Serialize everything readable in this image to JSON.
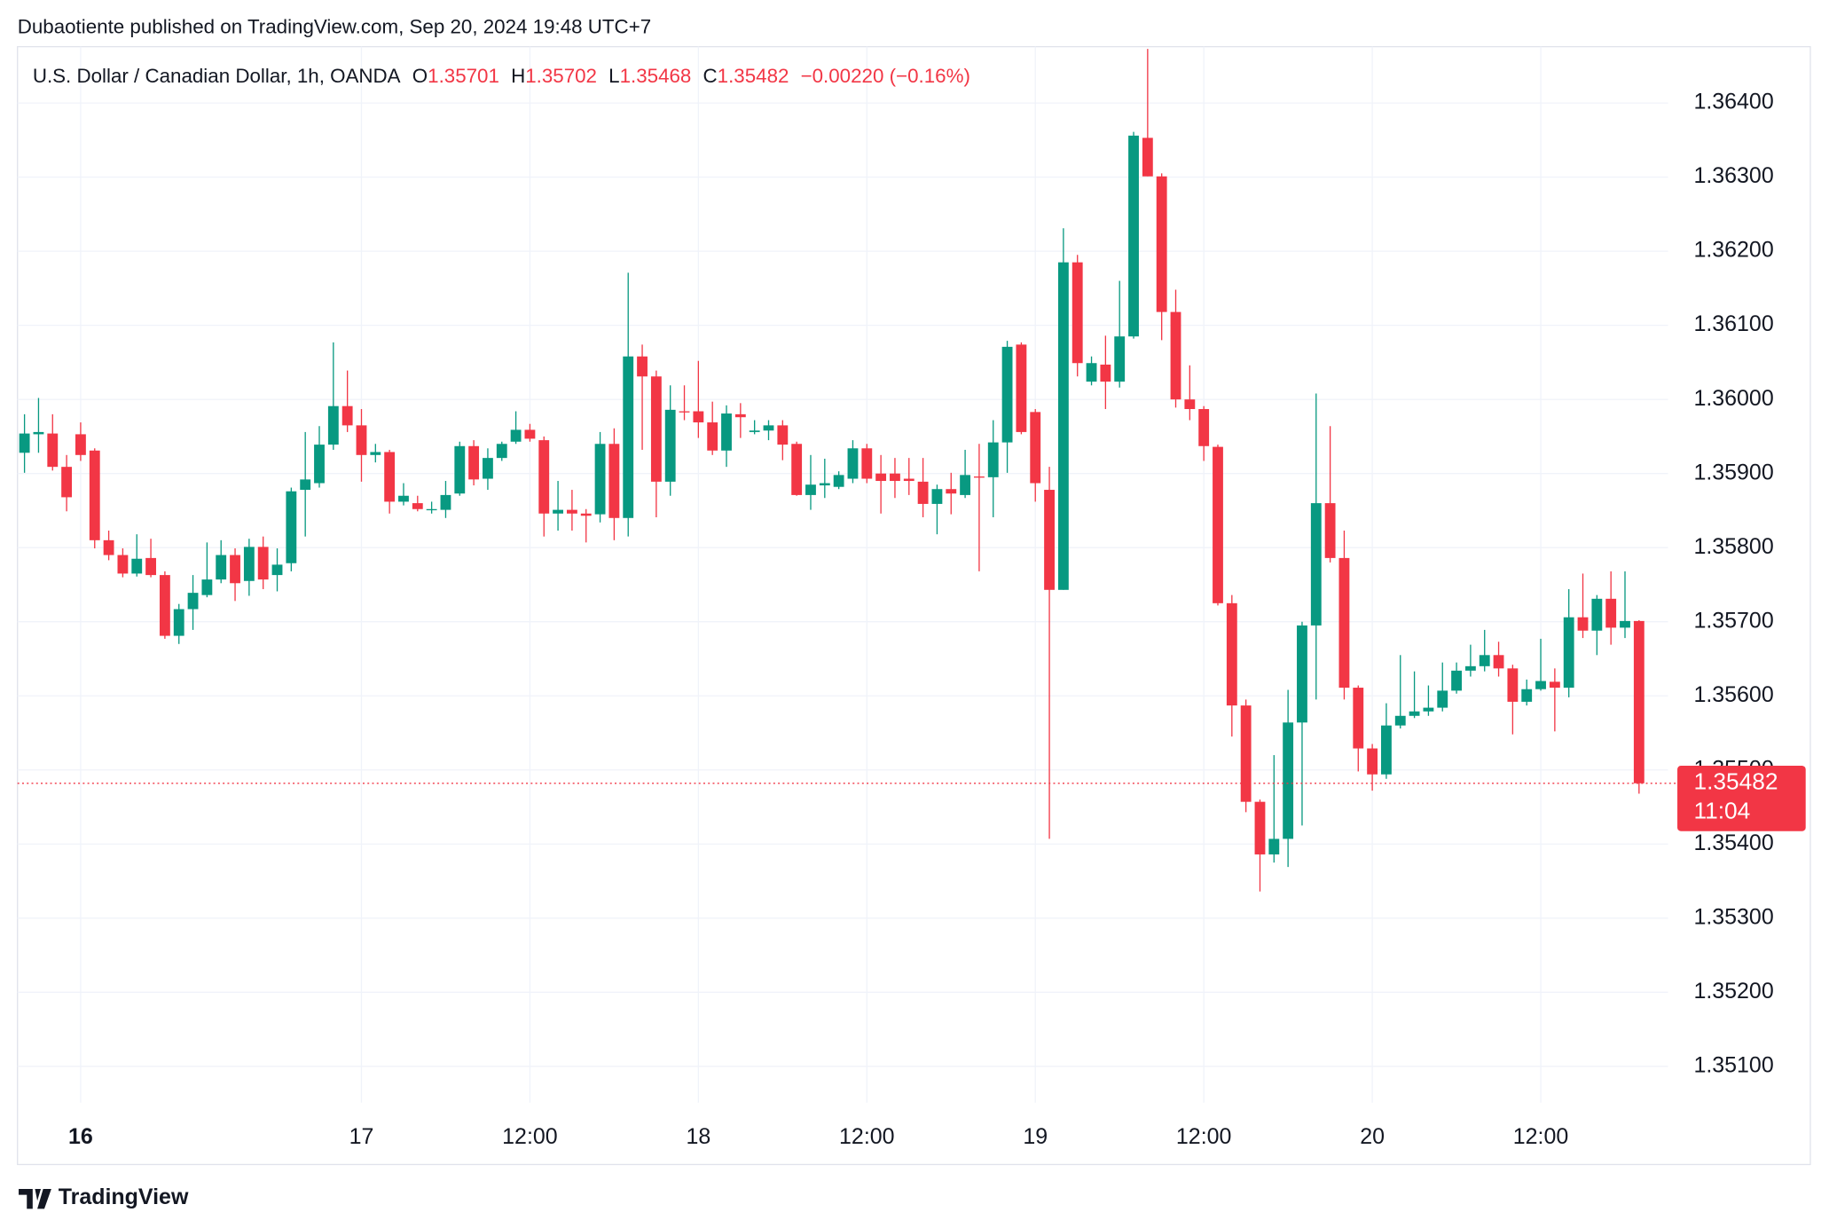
{
  "header": {
    "byline": "Dubaotiente published on TradingView.com, Sep 20, 2024 19:48 UTC+7",
    "symbol": "U.S. Dollar / Canadian Dollar, 1h, OANDA",
    "ohlc": [
      {
        "key": "O",
        "value": "1.35701"
      },
      {
        "key": "H",
        "value": "1.35702"
      },
      {
        "key": "L",
        "value": "1.35468"
      },
      {
        "key": "C",
        "value": "1.35482"
      }
    ],
    "change": "−0.00220 (−0.16%)"
  },
  "chart_data": {
    "type": "candlestick",
    "categories": [
      null,
      null,
      null,
      null,
      "16",
      null,
      null,
      null,
      null,
      null,
      null,
      null,
      null,
      null,
      null,
      null,
      null,
      null,
      null,
      null,
      null,
      null,
      null,
      null,
      "17",
      null,
      null,
      null,
      null,
      null,
      null,
      null,
      null,
      null,
      null,
      null,
      "12:00",
      null,
      null,
      null,
      null,
      null,
      null,
      null,
      null,
      null,
      null,
      null,
      "18",
      null,
      null,
      null,
      null,
      null,
      null,
      null,
      null,
      null,
      null,
      null,
      "12:00",
      null,
      null,
      null,
      null,
      null,
      null,
      null,
      null,
      null,
      null,
      null,
      "19",
      null,
      null,
      null,
      null,
      null,
      null,
      null,
      null,
      null,
      null,
      null,
      "12:00",
      null,
      null,
      null,
      null,
      null,
      null,
      null,
      null,
      null,
      null,
      null,
      "20",
      null,
      null,
      null,
      null,
      null,
      null,
      null,
      null,
      null,
      null,
      null,
      "12:00",
      null,
      null,
      null,
      null,
      null,
      null,
      null
    ],
    "open": [
      1.35928,
      1.35953,
      1.35954,
      1.35909,
      1.35953,
      1.35931,
      1.3581,
      1.3579,
      1.35765,
      1.35786,
      1.35763,
      1.35681,
      1.35717,
      1.35736,
      1.35757,
      1.3579,
      1.35755,
      1.35801,
      1.35763,
      1.35779,
      1.35878,
      1.35887,
      1.35939,
      1.35991,
      1.35965,
      1.35925,
      1.35929,
      1.35862,
      1.3586,
      1.35851,
      1.35851,
      1.35873,
      1.35937,
      1.35893,
      1.35921,
      1.35943,
      1.35959,
      1.35945,
      1.35846,
      1.35851,
      1.35846,
      1.35845,
      1.3594,
      1.3584,
      1.36058,
      1.36031,
      1.35889,
      1.35984,
      1.35984,
      1.35969,
      1.35931,
      1.3598,
      1.35956,
      1.35958,
      1.35965,
      1.3594,
      1.35871,
      1.35884,
      1.35882,
      1.35893,
      1.35934,
      1.359,
      1.359,
      1.35893,
      1.35889,
      1.35859,
      1.35879,
      1.35871,
      1.35896,
      1.35895,
      1.35942,
      1.36074,
      1.35983,
      1.35878,
      1.35743,
      1.36185,
      1.36024,
      1.36047,
      1.36024,
      1.36085,
      1.36353,
      1.36301,
      1.36118,
      1.36,
      1.35987,
      1.35936,
      1.35725,
      1.35587,
      1.35457,
      1.35386,
      1.35407,
      1.35564,
      1.35695,
      1.3586,
      1.35786,
      1.35611,
      1.35529,
      1.35494,
      1.3556,
      1.35573,
      1.35579,
      1.35584,
      1.35607,
      1.35634,
      1.3564,
      1.35655,
      1.35637,
      1.35592,
      1.35609,
      1.35619,
      1.35611,
      1.35706,
      1.35688,
      1.35731,
      1.35692,
      1.35701
    ],
    "high": [
      1.3598,
      1.36002,
      1.3598,
      1.35925,
      1.35969,
      1.35934,
      1.35823,
      1.35799,
      1.35818,
      1.35812,
      1.35768,
      1.35724,
      1.35763,
      1.35807,
      1.3581,
      1.35799,
      1.35812,
      1.35815,
      1.35799,
      1.35881,
      1.35956,
      1.35964,
      1.36077,
      1.36039,
      1.35987,
      1.3594,
      1.35932,
      1.35887,
      1.3587,
      1.35862,
      1.3589,
      1.35943,
      1.35945,
      1.35934,
      1.35943,
      1.35984,
      1.35967,
      1.3595,
      1.3589,
      1.35878,
      1.35852,
      1.35956,
      1.35961,
      1.36171,
      1.36074,
      1.36039,
      1.36019,
      1.36019,
      1.36052,
      1.35997,
      1.35992,
      1.35995,
      1.35972,
      1.35972,
      1.35972,
      1.35943,
      1.35925,
      1.3592,
      1.35903,
      1.35945,
      1.3594,
      1.35925,
      1.35921,
      1.35921,
      1.35921,
      1.35885,
      1.35901,
      1.35932,
      1.3594,
      1.35972,
      1.36079,
      1.36077,
      1.35987,
      1.35909,
      1.36231,
      1.36195,
      1.36058,
      1.36086,
      1.3616,
      1.36361,
      1.36473,
      1.36305,
      1.36148,
      1.36046,
      1.35991,
      1.35939,
      1.35736,
      1.35595,
      1.3546,
      1.3552,
      1.35608,
      1.357,
      1.36008,
      1.35964,
      1.35823,
      1.35614,
      1.35535,
      1.3559,
      1.35655,
      1.35633,
      1.35614,
      1.35645,
      1.35645,
      1.35669,
      1.35689,
      1.35673,
      1.35642,
      1.35622,
      1.35677,
      1.35637,
      1.35744,
      1.35765,
      1.35736,
      1.35768,
      1.35768,
      1.35702
    ],
    "low": [
      1.35901,
      1.35928,
      1.35904,
      1.35849,
      1.35917,
      1.35799,
      1.35783,
      1.3576,
      1.35761,
      1.3576,
      1.35677,
      1.3567,
      1.35689,
      1.35733,
      1.35752,
      1.35728,
      1.35735,
      1.35744,
      1.35741,
      1.35768,
      1.35815,
      1.35881,
      1.35932,
      1.35956,
      1.35889,
      1.35915,
      1.35846,
      1.35857,
      1.35849,
      1.35846,
      1.3584,
      1.3587,
      1.35884,
      1.35878,
      1.35917,
      1.3594,
      1.35943,
      1.35815,
      1.35823,
      1.35823,
      1.35807,
      1.35834,
      1.3581,
      1.35815,
      1.35932,
      1.35841,
      1.3587,
      1.35972,
      1.35948,
      1.35925,
      1.35909,
      1.35948,
      1.35953,
      1.35945,
      1.35918,
      1.3587,
      1.35851,
      1.35867,
      1.35879,
      1.35887,
      1.35887,
      1.35846,
      1.35867,
      1.35871,
      1.35841,
      1.35818,
      1.35845,
      1.35867,
      1.35768,
      1.35841,
      1.35901,
      1.35953,
      1.35862,
      1.35407,
      1.35743,
      1.36031,
      1.36019,
      1.35987,
      1.36016,
      1.36082,
      1.36301,
      1.3608,
      1.35989,
      1.35972,
      1.35917,
      1.35722,
      1.35545,
      1.35443,
      1.35336,
      1.35375,
      1.35369,
      1.35425,
      1.35595,
      1.3578,
      1.35595,
      1.35498,
      1.35472,
      1.35488,
      1.35556,
      1.3557,
      1.35573,
      1.35579,
      1.35603,
      1.35626,
      1.35633,
      1.35626,
      1.35548,
      1.35587,
      1.35607,
      1.35552,
      1.35598,
      1.35678,
      1.35655,
      1.35669,
      1.35678,
      1.35468
    ],
    "close": [
      1.35954,
      1.35956,
      1.35909,
      1.35868,
      1.35925,
      1.3581,
      1.3579,
      1.35765,
      1.35785,
      1.35763,
      1.35681,
      1.35717,
      1.35739,
      1.35757,
      1.3579,
      1.35752,
      1.35801,
      1.35757,
      1.35777,
      1.35876,
      1.35892,
      1.35939,
      1.35991,
      1.35965,
      1.35925,
      1.35929,
      1.35862,
      1.3587,
      1.35852,
      1.35852,
      1.35871,
      1.35937,
      1.35892,
      1.35921,
      1.3594,
      1.35959,
      1.35947,
      1.35846,
      1.35851,
      1.35846,
      1.35843,
      1.3594,
      1.3584,
      1.36058,
      1.36031,
      1.35889,
      1.35986,
      1.35983,
      1.35969,
      1.35931,
      1.35981,
      1.35976,
      1.35958,
      1.35965,
      1.35939,
      1.35871,
      1.35885,
      1.35887,
      1.35898,
      1.35934,
      1.35893,
      1.3589,
      1.3589,
      1.3589,
      1.35859,
      1.35879,
      1.35873,
      1.35898,
      1.35895,
      1.35942,
      1.36071,
      1.35956,
      1.35887,
      1.35743,
      1.36185,
      1.36049,
      1.36049,
      1.36024,
      1.36085,
      1.36356,
      1.36301,
      1.36118,
      1.36,
      1.35987,
      1.35937,
      1.35725,
      1.35587,
      1.35457,
      1.35386,
      1.35407,
      1.35564,
      1.35695,
      1.3586,
      1.35786,
      1.35611,
      1.35529,
      1.35494,
      1.3556,
      1.35573,
      1.35579,
      1.35584,
      1.35607,
      1.35634,
      1.3564,
      1.35655,
      1.35637,
      1.35592,
      1.35609,
      1.3562,
      1.35611,
      1.35706,
      1.35688,
      1.35731,
      1.35692,
      1.35701,
      1.35482
    ],
    "ylim": [
      1.35051,
      1.36476
    ],
    "yticks": [
      {
        "value": 1.351,
        "label": "1.35100"
      },
      {
        "value": 1.352,
        "label": "1.35200"
      },
      {
        "value": 1.353,
        "label": "1.35300"
      },
      {
        "value": 1.354,
        "label": "1.35400"
      },
      {
        "value": 1.355,
        "label": "1.35500"
      },
      {
        "value": 1.356,
        "label": "1.35600"
      },
      {
        "value": 1.357,
        "label": "1.35700"
      },
      {
        "value": 1.358,
        "label": "1.35800"
      },
      {
        "value": 1.359,
        "label": "1.35900"
      },
      {
        "value": 1.36,
        "label": "1.36000"
      },
      {
        "value": 1.361,
        "label": "1.36100"
      },
      {
        "value": 1.362,
        "label": "1.36200"
      },
      {
        "value": 1.363,
        "label": "1.36300"
      },
      {
        "value": 1.364,
        "label": "1.36400"
      }
    ],
    "grid": true,
    "up_color": "#089981",
    "down_color": "#f23645",
    "last_price": {
      "label": "1.35482",
      "countdown": "11:04"
    }
  },
  "footer": {
    "brand": "TradingView"
  }
}
